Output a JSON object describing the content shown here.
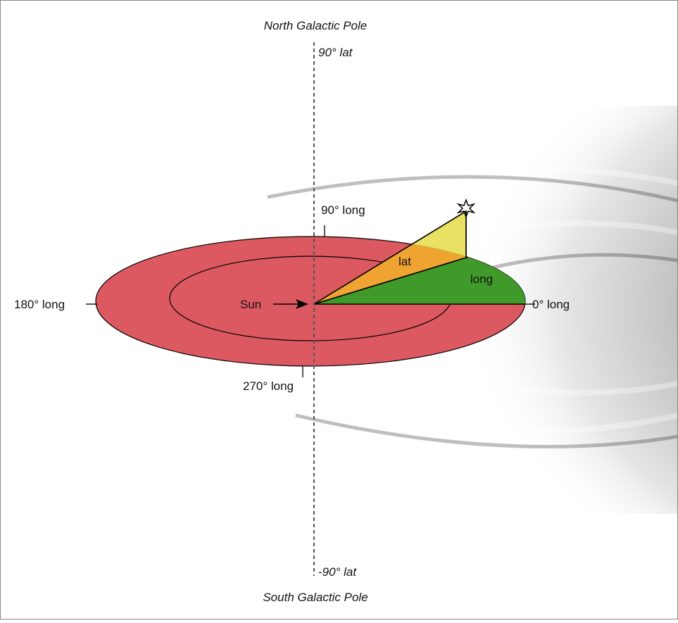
{
  "labels": {
    "north_pole": "North Galactic Pole",
    "lat_top": "90° lat",
    "long_90": "90° long",
    "long_180": "180° long",
    "long_0": "0° long",
    "long_270": "270° long",
    "sun": "Sun",
    "lat": "lat",
    "long": "long",
    "lat_bottom": "-90° lat",
    "south_pole": "South Galactic Pole"
  }
}
